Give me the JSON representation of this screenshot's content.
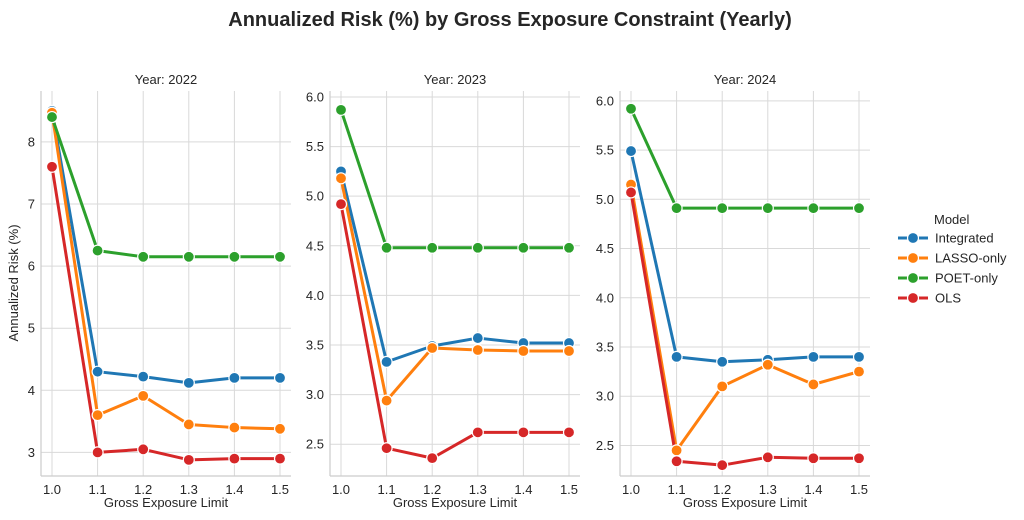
{
  "chart_data": {
    "type": "line",
    "title": "Annualized Risk (%) by Gross Exposure Constraint (Yearly)",
    "xlabel": "Gross Exposure Limit",
    "ylabel": "Annualized Risk (%)",
    "x": [
      1.0,
      1.1,
      1.2,
      1.3,
      1.4,
      1.5
    ],
    "x_tick_labels": [
      "1.0",
      "1.1",
      "1.2",
      "1.3",
      "1.4",
      "1.5"
    ],
    "grid": true,
    "legend": {
      "title": "Model",
      "placement": "right",
      "entries": [
        "Integrated",
        "LASSO-only",
        "POET-only",
        "OLS"
      ]
    },
    "colors": {
      "Integrated": "#1f77b4",
      "LASSO-only": "#ff7f0e",
      "POET-only": "#2ca02c",
      "OLS": "#d62728"
    },
    "panels": [
      {
        "title": "Year: 2022",
        "ylim": [
          2.62,
          8.82
        ],
        "yticks": [
          3,
          4,
          5,
          6,
          7,
          8
        ],
        "y_tick_labels": [
          "3",
          "4",
          "5",
          "6",
          "7",
          "8"
        ],
        "series": [
          {
            "name": "Integrated",
            "values": [
              8.5,
              4.3,
              4.22,
              4.12,
              4.2,
              4.2
            ]
          },
          {
            "name": "LASSO-only",
            "values": [
              8.47,
              3.6,
              3.91,
              3.45,
              3.4,
              3.38
            ]
          },
          {
            "name": "POET-only",
            "values": [
              8.4,
              6.25,
              6.15,
              6.15,
              6.15,
              6.15
            ]
          },
          {
            "name": "OLS",
            "values": [
              7.6,
              3.0,
              3.05,
              2.88,
              2.9,
              2.9
            ]
          }
        ]
      },
      {
        "title": "Year: 2023",
        "ylim": [
          2.18,
          6.06
        ],
        "yticks": [
          2.5,
          3.0,
          3.5,
          4.0,
          4.5,
          5.0,
          5.5,
          6.0
        ],
        "y_tick_labels": [
          "2.5",
          "3.0",
          "3.5",
          "4.0",
          "4.5",
          "5.0",
          "5.5",
          "6.0"
        ],
        "series": [
          {
            "name": "Integrated",
            "values": [
              5.25,
              3.33,
              3.49,
              3.57,
              3.52,
              3.52
            ]
          },
          {
            "name": "LASSO-only",
            "values": [
              5.18,
              2.94,
              3.47,
              3.45,
              3.44,
              3.44
            ]
          },
          {
            "name": "POET-only",
            "values": [
              5.87,
              4.48,
              4.48,
              4.48,
              4.48,
              4.48
            ]
          },
          {
            "name": "OLS",
            "values": [
              4.92,
              2.46,
              2.36,
              2.62,
              2.62,
              2.62
            ]
          }
        ]
      },
      {
        "title": "Year: 2024",
        "ylim": [
          2.19,
          6.1
        ],
        "yticks": [
          2.5,
          3.0,
          3.5,
          4.0,
          4.5,
          5.0,
          5.5,
          6.0
        ],
        "y_tick_labels": [
          "2.5",
          "3.0",
          "3.5",
          "4.0",
          "4.5",
          "5.0",
          "5.5",
          "6.0"
        ],
        "series": [
          {
            "name": "Integrated",
            "values": [
              5.49,
              3.4,
              3.35,
              3.37,
              3.4,
              3.4
            ]
          },
          {
            "name": "LASSO-only",
            "values": [
              5.15,
              2.45,
              3.1,
              3.32,
              3.12,
              3.25
            ]
          },
          {
            "name": "POET-only",
            "values": [
              5.92,
              4.91,
              4.91,
              4.91,
              4.91,
              4.91
            ]
          },
          {
            "name": "OLS",
            "values": [
              5.07,
              2.34,
              2.3,
              2.38,
              2.37,
              2.37
            ]
          }
        ]
      }
    ]
  }
}
